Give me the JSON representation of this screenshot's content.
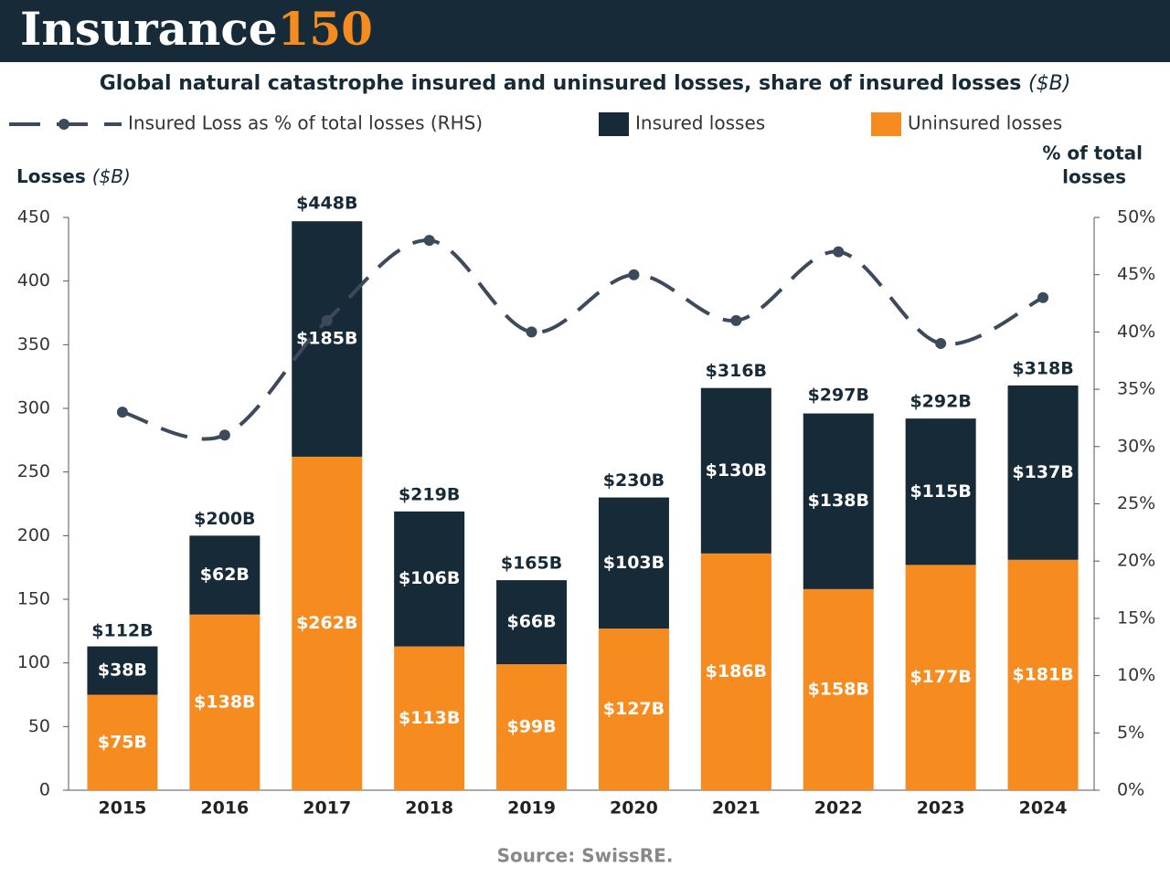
{
  "brand": {
    "name": "Insurance",
    "number": "150"
  },
  "chart_data": {
    "type": "bar",
    "title": "Global natural catastrophe insured and uninsured losses, share of insured losses",
    "title_unit": "($B)",
    "y_label": "Losses",
    "y_label_unit": "($B)",
    "y2_label": [
      "% of total",
      "losses"
    ],
    "categories": [
      "2015",
      "2016",
      "2017",
      "2018",
      "2019",
      "2020",
      "2021",
      "2022",
      "2023",
      "2024"
    ],
    "series": [
      {
        "name": "Insured Loss as % of total losses (RHS)",
        "type": "line",
        "axis": "y2",
        "color": "#3d4a5c",
        "values": [
          33,
          31,
          41,
          48,
          40,
          45,
          41,
          47,
          39,
          43
        ]
      },
      {
        "name": "Insured losses",
        "type": "bar",
        "color": "#162b37",
        "values": [
          38,
          62,
          185,
          106,
          66,
          103,
          130,
          138,
          115,
          137
        ],
        "value_labels": [
          "$38B",
          "$62B",
          "$185B",
          "$106B",
          "$66B",
          "$103B",
          "$130B",
          "$138B",
          "$115B",
          "$137B"
        ]
      },
      {
        "name": "Uninsured losses",
        "type": "bar",
        "color": "#f68b1f",
        "values": [
          75,
          138,
          262,
          113,
          99,
          127,
          186,
          158,
          177,
          181
        ],
        "value_labels": [
          "$75B",
          "$138B",
          "$262B",
          "$113B",
          "$99B",
          "$127B",
          "$186B",
          "$158B",
          "$177B",
          "$181B"
        ]
      }
    ],
    "totals": {
      "values": [
        112,
        200,
        448,
        219,
        165,
        230,
        316,
        297,
        292,
        318
      ],
      "value_labels": [
        "$112B",
        "$200B",
        "$448B",
        "$219B",
        "$165B",
        "$230B",
        "$316B",
        "$297B",
        "$292B",
        "$318B"
      ]
    },
    "ylim": [
      0,
      450
    ],
    "yticks": [
      0,
      50,
      100,
      150,
      200,
      250,
      300,
      350,
      400,
      450
    ],
    "y2lim": [
      0,
      50
    ],
    "y2ticks": [
      {
        "value": 0,
        "label": "0%"
      },
      {
        "value": 5,
        "label": "5%"
      },
      {
        "value": 10,
        "label": "10%"
      },
      {
        "value": 15,
        "label": "15%"
      },
      {
        "value": 20,
        "label": "20%"
      },
      {
        "value": 25,
        "label": "25%"
      },
      {
        "value": 30,
        "label": "30%"
      },
      {
        "value": 35,
        "label": "35%"
      },
      {
        "value": 40,
        "label": "40%"
      },
      {
        "value": 45,
        "label": "45%"
      },
      {
        "value": 50,
        "label": "50%"
      }
    ],
    "source": "Source: SwissRE."
  }
}
